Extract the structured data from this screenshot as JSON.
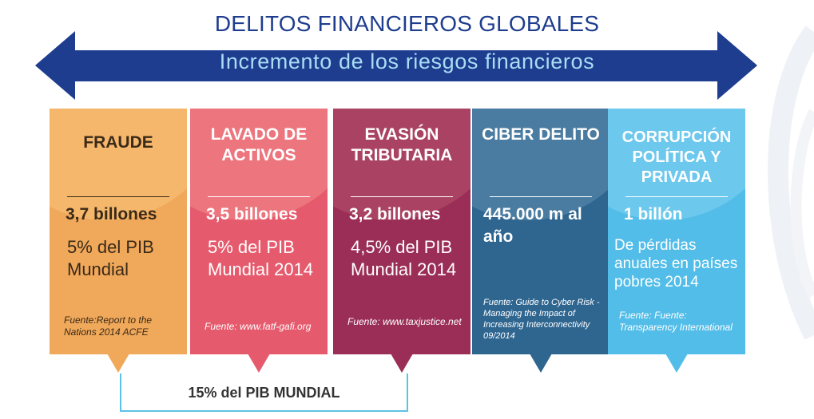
{
  "title": "DELITOS FINANCIEROS GLOBALES",
  "subtitle": "Incremento de los riesgos financieros",
  "colors": {
    "title": "#1e3d8f",
    "arrow": "#1e3d8f",
    "subtitle": "#a9ddf5",
    "bracket": "#5cc3e6"
  },
  "cards": [
    {
      "name": "FRAUDE",
      "amount": "3,7 billones",
      "description": "5% del PIB Mundial",
      "source": "Fuente:Report to the Nations 2014 ACFE",
      "color": "#f0a85a",
      "text_color": "#3a2a18"
    },
    {
      "name": "LAVADO DE ACTIVOS",
      "amount": "3,5 billones",
      "description": "5% del PIB Mundial 2014",
      "source": "Fuente: www.fatf-gafi.org",
      "color": "#e55a6c",
      "text_color": "#ffffff"
    },
    {
      "name": "EVASIÓN TRIBUTARIA",
      "amount": "3,2 billones",
      "description": "4,5% del PIB Mundial 2014",
      "source": "Fuente: www.taxjustice.net",
      "color": "#9a2e56",
      "text_color": "#ffffff"
    },
    {
      "name": "CIBER DELITO",
      "amount": "445.000 m al año",
      "description": "",
      "source": "Fuente: Guide to Cyber Risk - Managing the Impact of Increasing Interconnectivity 09/2014",
      "color": "#2f6690",
      "text_color": "#ffffff"
    },
    {
      "name": "CORRUPCIÓN POLÍTICA Y PRIVADA",
      "amount": "1 billón",
      "description": "De pérdidas anuales en países pobres 2014",
      "source": "Fuente: Fuente: Transparency International",
      "color": "#52bde8",
      "text_color": "#ffffff"
    }
  ],
  "summary": "15% del PIB MUNDIAL"
}
